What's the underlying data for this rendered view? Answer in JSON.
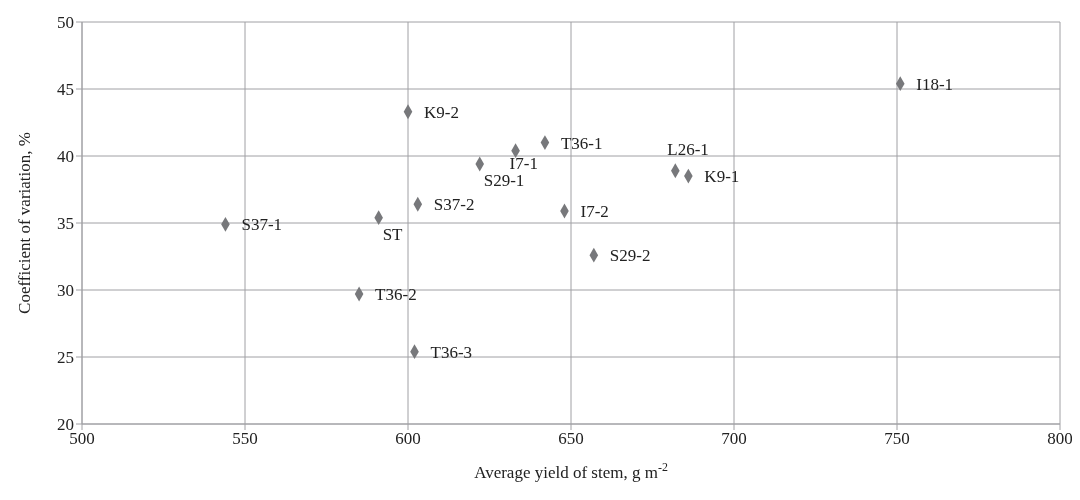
{
  "chart_data": {
    "type": "scatter",
    "xlabel": "Average yield of stem, g m$^{-2}$",
    "ylabel": "Coefficient of variation, %",
    "x": [
      751,
      600,
      642,
      633,
      622,
      682,
      686,
      603,
      591,
      544,
      648,
      657,
      585,
      602
    ],
    "values": [
      45.4,
      43.3,
      41.0,
      40.4,
      39.4,
      38.9,
      38.5,
      36.4,
      35.4,
      34.9,
      35.9,
      32.6,
      29.7,
      25.4
    ],
    "color": "#77787b",
    "marker": "diamond",
    "grid": true,
    "xlim": [
      500,
      800
    ],
    "xticks": [
      500,
      550,
      600,
      650,
      700,
      750,
      800
    ],
    "ylim": [
      20,
      50
    ],
    "yticks": [
      20,
      25,
      30,
      35,
      40,
      45,
      50
    ],
    "annotations": [
      {
        "text": "I18-1",
        "x": 751,
        "y": 45.4
      },
      {
        "text": "K9-2",
        "x": 600,
        "y": 43.3
      },
      {
        "text": "T36-1",
        "x": 642,
        "y": 41.0
      },
      {
        "text": "I7-1",
        "x": 633,
        "y": 40.4
      },
      {
        "text": "S29-1",
        "x": 622,
        "y": 39.4
      },
      {
        "text": "L26-1",
        "x": 682,
        "y": 38.9
      },
      {
        "text": "K9-1",
        "x": 686,
        "y": 38.5
      },
      {
        "text": "S37-2",
        "x": 603,
        "y": 36.4
      },
      {
        "text": "ST",
        "x": 591,
        "y": 35.4
      },
      {
        "text": "S37-1",
        "x": 544,
        "y": 34.9
      },
      {
        "text": "I7-2",
        "x": 648,
        "y": 35.9
      },
      {
        "text": "S29-2",
        "x": 657,
        "y": 32.6
      },
      {
        "text": "T36-2",
        "x": 585,
        "y": 29.7
      },
      {
        "text": "T36-3",
        "x": 602,
        "y": 25.4
      }
    ]
  }
}
